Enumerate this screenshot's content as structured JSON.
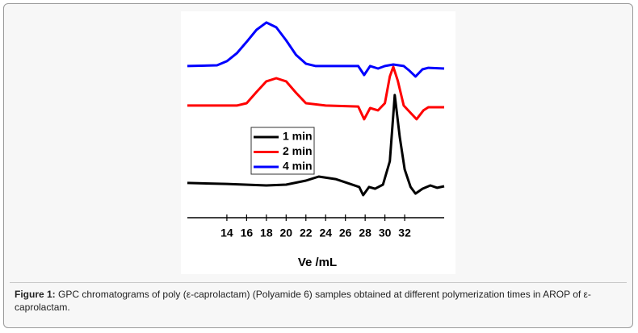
{
  "chart_data": {
    "type": "line",
    "xlabel": "Ve /mL",
    "xlim": [
      10,
      36
    ],
    "ylim": [
      0,
      100
    ],
    "xticks": [
      14,
      16,
      18,
      20,
      22,
      24,
      26,
      28,
      30,
      32
    ],
    "legend": "center-left",
    "series": [
      {
        "name": "1 min",
        "color": "#000000",
        "x": [
          10,
          14,
          18,
          20,
          22,
          23.3,
          25,
          26.2,
          27.4,
          27.8,
          28.4,
          29,
          29.8,
          30.5,
          31,
          31.5,
          32,
          32.6,
          33.1,
          33.8,
          34.6,
          35.3,
          36
        ],
        "values": [
          13.8,
          13.3,
          12.5,
          12.9,
          15,
          17.1,
          15.8,
          13.8,
          11.7,
          7.5,
          11.7,
          10.8,
          12.9,
          25,
          59.2,
          37.5,
          20.8,
          11.7,
          8.3,
          10.8,
          12.5,
          11.3,
          12.1
        ]
      },
      {
        "name": "2 min",
        "color": "#ff0000",
        "x": [
          10,
          15,
          16,
          17,
          18,
          19,
          20,
          21,
          22,
          24,
          27.3,
          27.9,
          28.5,
          29.3,
          30,
          30.5,
          30.85,
          31.3,
          31.9,
          32.6,
          33.2,
          33.9,
          34.4,
          36
        ],
        "values": [
          53.8,
          53.8,
          55,
          60.8,
          66.3,
          67.9,
          66.3,
          60.4,
          55,
          53.8,
          53.3,
          46.7,
          52.5,
          51.3,
          55,
          68.8,
          73.8,
          66.7,
          53.8,
          50,
          46.7,
          51.3,
          52.9,
          52.9
        ]
      },
      {
        "name": "4 min",
        "color": "#0000ff",
        "x": [
          10,
          13,
          14,
          15,
          16,
          17,
          18,
          19,
          20,
          21,
          22,
          23,
          27.3,
          27.9,
          28.5,
          29.3,
          30,
          30.85,
          31.9,
          32.5,
          33.1,
          33.8,
          34.4,
          36
        ],
        "values": [
          74.2,
          74.6,
          76.7,
          80.8,
          86.7,
          92.9,
          96.7,
          94.2,
          87.5,
          80,
          75.4,
          74.2,
          74.2,
          69.6,
          74.2,
          72.9,
          74.2,
          75,
          74.2,
          71.7,
          68.8,
          72.5,
          73.3,
          72.9
        ]
      }
    ]
  },
  "caption": {
    "label": "Figure 1:",
    "text": "GPC chromatograms of poly (ε-caprolactam) (Polyamide 6) samples obtained at different polymerization times in AROP of ε-caprolactam."
  }
}
